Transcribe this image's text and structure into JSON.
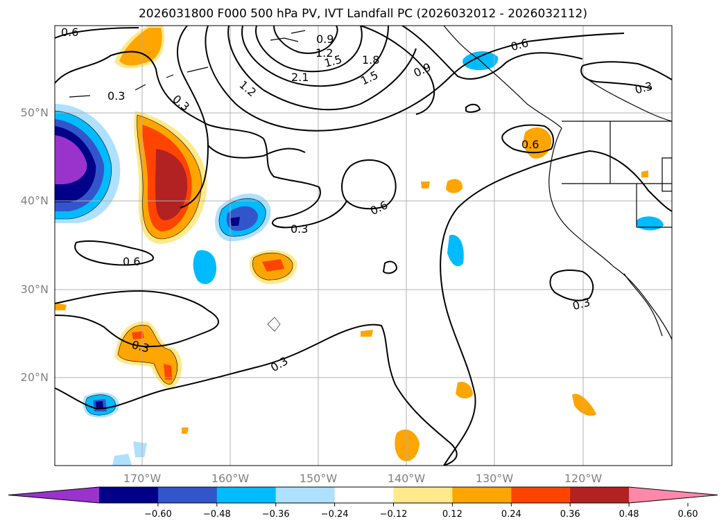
{
  "title": "2026031800 F000 500 hPa PV, IVT Landfall PC (2026032012 - 2026032112)",
  "lat_labels": [
    "50°N",
    "40°N",
    "30°N",
    "20°N"
  ],
  "lon_labels": [
    "170°W",
    "160°W",
    "150°W",
    "140°W",
    "130°W",
    "120°W"
  ],
  "contour_labels": [
    "0.6",
    "0.3",
    "0.3",
    "0.9",
    "1.2",
    "1.5",
    "1.8",
    "2.1",
    "1.2",
    "1.5",
    "0.9",
    "0.6",
    "0.3",
    "0.6",
    "0.6",
    "0.3",
    "0.6",
    "0.3",
    "0.3",
    "0.3"
  ],
  "colorbar": {
    "ticks": [
      "−0.60",
      "−0.48",
      "−0.36",
      "−0.24",
      "−0.12",
      "0.12",
      "0.24",
      "0.36",
      "0.48",
      "0.60"
    ],
    "colors": [
      "#9933cc",
      "#000088",
      "#3355cc",
      "#00bbff",
      "#aee0ff",
      "#ffffff",
      "#ffe98a",
      "#ffa500",
      "#ff4400",
      "#b22222",
      "#ff88aa"
    ]
  }
}
